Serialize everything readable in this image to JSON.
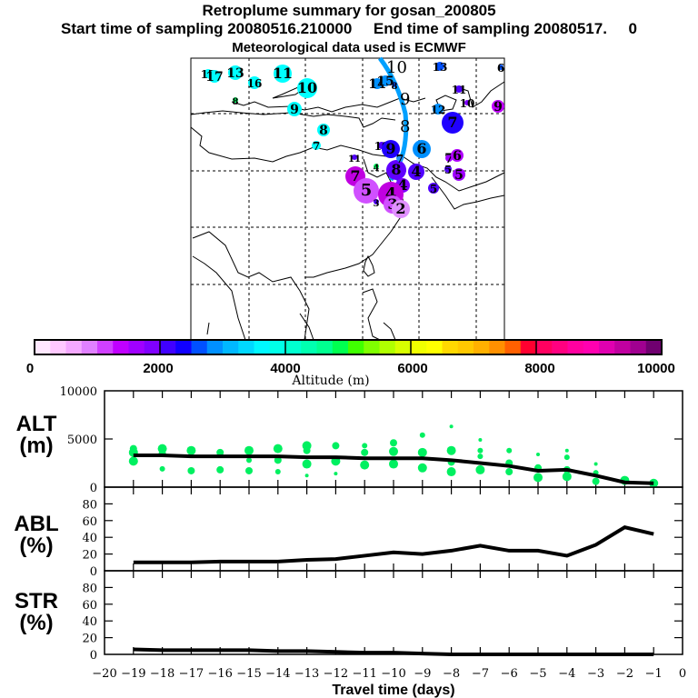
{
  "header": {
    "title": "Retroplume summary for gosan_200805",
    "subtitle": "Start time of sampling 20080516.210000     End time of sampling 20080517.     0",
    "met_note": "Meteorological data used is ECMWF"
  },
  "chart_data": [
    {
      "type": "scatter",
      "name": "map",
      "description": "Retroplume cluster centroids on East Asia map, labelled by days back, colored by altitude",
      "points": [
        {
          "label": "17",
          "color": "#00ffff",
          "size": "small"
        },
        {
          "label": "17",
          "color": "#00ffff",
          "size": "medium"
        },
        {
          "label": "13",
          "color": "#00ffff",
          "size": "medium"
        },
        {
          "label": "16",
          "color": "#00ffff",
          "size": "small"
        },
        {
          "label": "11",
          "color": "#00ffff",
          "size": "large"
        },
        {
          "label": "10",
          "color": "#00ffff",
          "size": "large"
        },
        {
          "label": "9",
          "color": "#00ffff",
          "size": "medium"
        },
        {
          "label": "8",
          "color": "#00ff60",
          "size": "tiny"
        },
        {
          "label": "8",
          "color": "#00ffff",
          "size": "medium"
        },
        {
          "label": "7",
          "color": "#00ffff",
          "size": "small"
        },
        {
          "label": "14",
          "color": "#0090ff",
          "size": "medium"
        },
        {
          "label": "15",
          "color": "#0090ff",
          "size": "medium"
        },
        {
          "label": "13",
          "color": "#0050ff",
          "size": "small"
        },
        {
          "label": "12",
          "color": "#0090ff",
          "size": "small"
        },
        {
          "label": "6",
          "color": "#0050ff",
          "size": "small"
        },
        {
          "label": "11",
          "color": "#5000ff",
          "size": "small"
        },
        {
          "label": "10",
          "color": "#8000ff",
          "size": "small"
        },
        {
          "label": "9",
          "color": "#c000ff",
          "size": "medium"
        },
        {
          "label": "7",
          "color": "#2000ff",
          "size": "large"
        },
        {
          "label": "6",
          "color": "#0090ff",
          "size": "large"
        },
        {
          "label": "10",
          "color": "#5000ff",
          "size": "small"
        },
        {
          "label": "9",
          "color": "#2000ff",
          "size": "large"
        },
        {
          "label": "8",
          "color": "#6000ff",
          "size": "large"
        },
        {
          "label": "7",
          "color": "#2090ff",
          "size": "small"
        },
        {
          "label": "4",
          "color": "#5000ff",
          "size": "large"
        },
        {
          "label": "4",
          "color": "#8000ff",
          "size": "large"
        },
        {
          "label": "11",
          "color": "#5000ff",
          "size": "tiny"
        },
        {
          "label": "4",
          "color": "#00ff60",
          "size": "tiny"
        },
        {
          "label": "7",
          "color": "#c000e0",
          "size": "large"
        },
        {
          "label": "5",
          "color": "#d050ff",
          "size": "xlarge"
        },
        {
          "label": "3",
          "color": "#5000ff",
          "size": "tiny"
        },
        {
          "label": "4",
          "color": "#c000e0",
          "size": "xlarge"
        },
        {
          "label": "3",
          "color": "#d050ff",
          "size": "large"
        },
        {
          "label": "2",
          "color": "#e090ff",
          "size": "large"
        },
        {
          "label": "7",
          "color": "#a000ff",
          "size": "medium"
        },
        {
          "label": "6",
          "color": "#b000ff",
          "size": "medium"
        },
        {
          "label": "5",
          "color": "#5000ff",
          "size": "small"
        },
        {
          "label": "5",
          "color": "#a000ff",
          "size": "medium"
        },
        {
          "label": "5",
          "color": "#5000ff",
          "size": "small"
        },
        {
          "label": "8",
          "color": "#0050ff",
          "size": "tiny"
        }
      ],
      "trajectory_labels": [
        "10",
        "9",
        "8"
      ],
      "trajectory_color": "#00a0ff"
    },
    {
      "type": "colorbar",
      "name": "altitude-colorbar",
      "title": "Altitude (m)",
      "range": [
        0,
        10000
      ],
      "ticks": [
        "0",
        "2000",
        "4000",
        "6000",
        "8000",
        "10000"
      ],
      "colors": [
        "#ffe8ff",
        "#ffc8ff",
        "#f4a8ff",
        "#e080ff",
        "#d040ff",
        "#c000ff",
        "#a000ff",
        "#8000ff",
        "#4000ff",
        "#1000ff",
        "#0050ff",
        "#0090ff",
        "#00b8ff",
        "#00d8ff",
        "#00f8ff",
        "#00ffe8",
        "#00ffd0",
        "#00ffb0",
        "#00ff90",
        "#00ff50",
        "#40ff00",
        "#80ff00",
        "#b0ff00",
        "#d8ff00",
        "#f0ff00",
        "#ffff00",
        "#ffd800",
        "#ffc800",
        "#ffb000",
        "#ff9000",
        "#ff6000",
        "#ff0030",
        "#ff0060",
        "#ff0080",
        "#ff00a0",
        "#ff00b0",
        "#e000b0",
        "#c000a0",
        "#a00090",
        "#700070"
      ]
    },
    {
      "type": "line",
      "name": "ALT",
      "ylabel": "ALT\n(m)",
      "ylim": [
        0,
        10000
      ],
      "yticks": [
        "0",
        "5000",
        "10000"
      ],
      "x": [
        -19,
        -18,
        -17,
        -16,
        -15,
        -14,
        -13,
        -12,
        -11,
        -10,
        -9,
        -8,
        -7,
        -6,
        -5,
        -4,
        -3,
        -2,
        -1
      ],
      "values": [
        3300,
        3300,
        3200,
        3200,
        3200,
        3200,
        3100,
        3100,
        3000,
        3000,
        3000,
        2800,
        2500,
        2200,
        1700,
        1800,
        1200,
        500,
        400
      ],
      "scatter": [
        {
          "x": -19,
          "ys": [
            4000,
            3600,
            2700
          ],
          "sizes": [
            4,
            5,
            5
          ]
        },
        {
          "x": -18,
          "ys": [
            4000,
            3500,
            1900
          ],
          "sizes": [
            5,
            4,
            3
          ]
        },
        {
          "x": -17,
          "ys": [
            3800,
            1700
          ],
          "sizes": [
            5,
            4
          ]
        },
        {
          "x": -16,
          "ys": [
            3600,
            1800
          ],
          "sizes": [
            4,
            4
          ]
        },
        {
          "x": -15,
          "ys": [
            3800,
            2800,
            1700
          ],
          "sizes": [
            5,
            3,
            4
          ]
        },
        {
          "x": -14,
          "ys": [
            4000,
            2800,
            1600
          ],
          "sizes": [
            5,
            4,
            3
          ]
        },
        {
          "x": -13,
          "ys": [
            4300,
            3800,
            2400,
            1200
          ],
          "sizes": [
            5,
            4,
            5,
            2
          ]
        },
        {
          "x": -12,
          "ys": [
            4300,
            2700,
            1400
          ],
          "sizes": [
            4,
            5,
            2
          ]
        },
        {
          "x": -11,
          "ys": [
            4300,
            3600,
            2300
          ],
          "sizes": [
            3,
            4,
            5
          ]
        },
        {
          "x": -10,
          "ys": [
            4600,
            3700,
            2400
          ],
          "sizes": [
            4,
            5,
            5
          ]
        },
        {
          "x": -9,
          "ys": [
            5400,
            3600,
            2000
          ],
          "sizes": [
            3,
            5,
            5
          ]
        },
        {
          "x": -8,
          "ys": [
            6300,
            3800,
            2600,
            1600
          ],
          "sizes": [
            2,
            5,
            4,
            5
          ]
        },
        {
          "x": -7,
          "ys": [
            4900,
            3800,
            3200,
            1800
          ],
          "sizes": [
            2,
            3,
            3,
            5
          ]
        },
        {
          "x": -6,
          "ys": [
            3800,
            2500,
            1600
          ],
          "sizes": [
            3,
            4,
            4
          ]
        },
        {
          "x": -5,
          "ys": [
            3400,
            2000,
            1000
          ],
          "sizes": [
            2,
            4,
            5
          ]
        },
        {
          "x": -4,
          "ys": [
            3800,
            3100,
            1800,
            1100
          ],
          "sizes": [
            2,
            3,
            4,
            5
          ]
        },
        {
          "x": -3,
          "ys": [
            2400,
            1500,
            600
          ],
          "sizes": [
            2,
            3,
            4
          ]
        },
        {
          "x": -2,
          "ys": [
            700
          ],
          "sizes": [
            5
          ]
        },
        {
          "x": -1,
          "ys": [
            400
          ],
          "sizes": [
            5
          ]
        }
      ],
      "scatter_color": "#00f060"
    },
    {
      "type": "line",
      "name": "ABL",
      "ylabel": "ABL\n(%)",
      "ylim": [
        0,
        100
      ],
      "yticks": [
        "0",
        "20",
        "40",
        "60",
        "80"
      ],
      "x": [
        -19,
        -18,
        -17,
        -16,
        -15,
        -14,
        -13,
        -12,
        -11,
        -10,
        -9,
        -8,
        -7,
        -6,
        -5,
        -4,
        -3,
        -2,
        -1
      ],
      "values": [
        10,
        10,
        10,
        11,
        11,
        11,
        13,
        14,
        18,
        22,
        20,
        24,
        30,
        24,
        24,
        18,
        31,
        52,
        44
      ]
    },
    {
      "type": "line",
      "name": "STR",
      "ylabel": "STR\n(%)",
      "ylim": [
        0,
        100
      ],
      "yticks": [
        "0",
        "20",
        "40",
        "60",
        "80"
      ],
      "x": [
        -19,
        -18,
        -17,
        -16,
        -15,
        -14,
        -13,
        -12,
        -11,
        -10,
        -9,
        -8,
        -7,
        -6,
        -5,
        -4,
        -3,
        -2,
        -1
      ],
      "values": [
        6,
        5,
        5,
        5,
        5,
        4,
        4,
        3,
        2,
        2,
        1,
        0,
        0,
        0,
        0,
        0,
        0,
        0,
        0
      ],
      "xlabel": "Travel time (days)",
      "xticks": [
        "-20",
        "-19",
        "-18",
        "-17",
        "-16",
        "-15",
        "-14",
        "-13",
        "-12",
        "-11",
        "-10",
        "-9",
        "-8",
        "-7",
        "-6",
        "-5",
        "-4",
        "-3",
        "-2",
        "-1",
        "0"
      ]
    }
  ]
}
